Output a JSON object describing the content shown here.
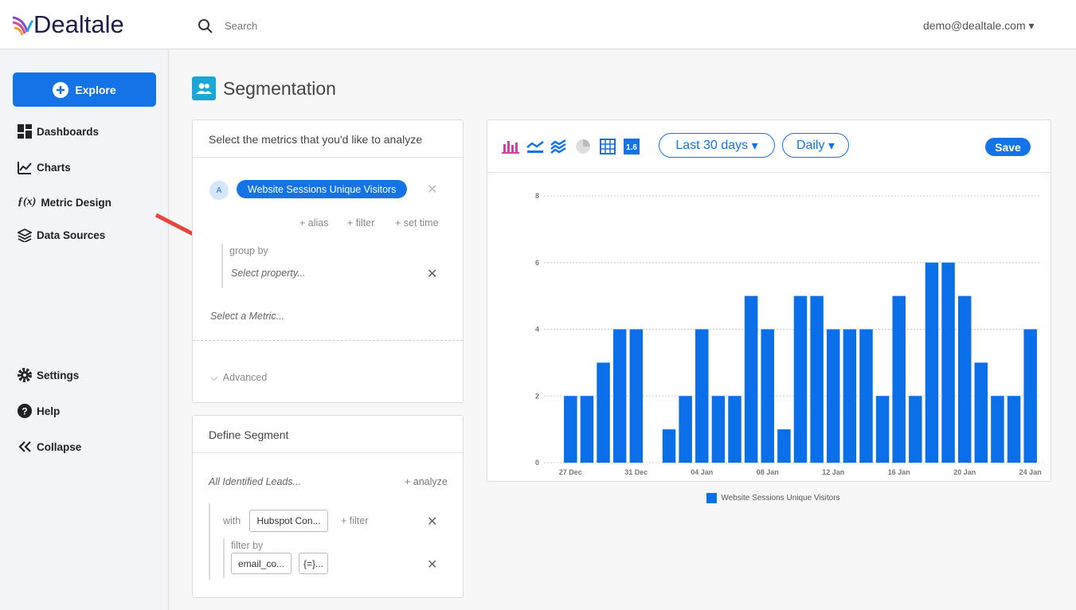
{
  "header": {
    "brand": "Dealtale",
    "search": "Search",
    "user": "demo@dealtale.com"
  },
  "sidebar": {
    "explore": "Explore",
    "nav": [
      "Dashboards",
      "Charts",
      "Metric Design",
      "Data Sources"
    ],
    "bottom": [
      "Settings",
      "Help",
      "Collapse"
    ]
  },
  "page_title": "Segmentation",
  "metrics_panel": {
    "title": "Select the metrics that you'd like to analyze",
    "badge": "A",
    "metric": "Website Sessions Unique Visitors",
    "actions": [
      "alias",
      "filter",
      "set time"
    ],
    "group_by": "group by",
    "group_by_placeholder": "Select property...",
    "select_metric": "Select a Metric...",
    "advanced": "Advanced"
  },
  "segment_panel": {
    "title": "Define Segment",
    "base": "All Identified Leads...",
    "analyze": "analyze",
    "with": "with",
    "with_value": "Hubspot Con...",
    "filter": "filter",
    "filter_by": "filter by",
    "filter_field": "email_co...",
    "filter_op": "{=}..."
  },
  "toolbar": {
    "number_icon": "1.6",
    "range": "Last 30 days",
    "interval": "Daily",
    "save": "Save"
  },
  "chart_data": {
    "type": "bar",
    "categories": [
      "27 Dec",
      null,
      null,
      null,
      "31 Dec",
      null,
      null,
      null,
      "04 Jan",
      null,
      null,
      null,
      "08 Jan",
      null,
      null,
      null,
      "12 Jan",
      null,
      null,
      null,
      "16 Jan",
      null,
      null,
      null,
      "20 Jan",
      null,
      null,
      null,
      "24 Jan"
    ],
    "series": [
      {
        "name": "Website Sessions Unique Visitors",
        "color": "#0a6fe8",
        "values": [
          2,
          2,
          3,
          4,
          4,
          0,
          1,
          2,
          4,
          2,
          2,
          5,
          4,
          1,
          5,
          5,
          4,
          4,
          4,
          2,
          5,
          2,
          6,
          6,
          5,
          3,
          2,
          2,
          4
        ]
      }
    ],
    "ylim": [
      0,
      8
    ],
    "yticks": [
      0,
      2,
      4,
      6,
      8
    ],
    "grid": true,
    "legend": "bottom"
  }
}
